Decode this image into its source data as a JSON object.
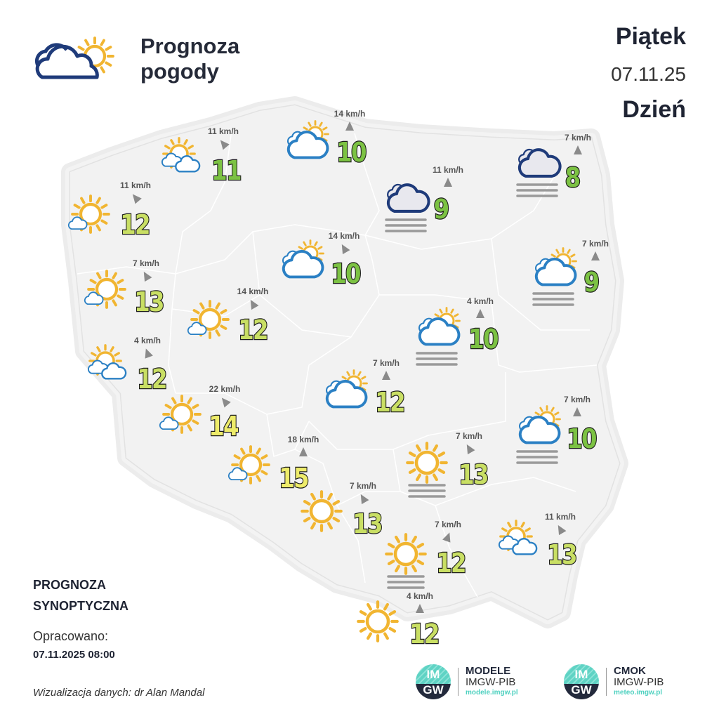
{
  "header": {
    "title_line1": "Prognoza",
    "title_line2": "pogody",
    "day_name": "Piątek",
    "date": "07.11.25",
    "period": "Dzień"
  },
  "legend_colors": {
    "cool": "#7cc243",
    "mild": "#c9df64",
    "warm": "#eeec6a"
  },
  "stations": [
    {
      "wind": "11 km/h",
      "temp": "11",
      "icon": "sun-clouds"
    },
    {
      "wind": "14 km/h",
      "temp": "10",
      "icon": "cloud-sun"
    },
    {
      "wind": "7 km/h",
      "temp": "8",
      "icon": "dark-cloud-fog"
    },
    {
      "wind": "11 km/h",
      "temp": "12",
      "icon": "sun-small-cloud"
    },
    {
      "wind": "11 km/h",
      "temp": "9",
      "icon": "dark-cloud-fog"
    },
    {
      "wind": "14 km/h",
      "temp": "10",
      "icon": "cloud-sun"
    },
    {
      "wind": "7 km/h",
      "temp": "9",
      "icon": "cloud-sun-fog"
    },
    {
      "wind": "7 km/h",
      "temp": "13",
      "icon": "sun-small-cloud"
    },
    {
      "wind": "14 km/h",
      "temp": "12",
      "icon": "sun-small-cloud"
    },
    {
      "wind": "4 km/h",
      "temp": "10",
      "icon": "cloud-sun-fog"
    },
    {
      "wind": "4 km/h",
      "temp": "12",
      "icon": "sun-clouds"
    },
    {
      "wind": "7 km/h",
      "temp": "12",
      "icon": "cloud-sun"
    },
    {
      "wind": "22 km/h",
      "temp": "14",
      "icon": "sun-small-cloud"
    },
    {
      "wind": "7 km/h",
      "temp": "10",
      "icon": "cloud-sun-fog"
    },
    {
      "wind": "18 km/h",
      "temp": "15",
      "icon": "sun-small-cloud"
    },
    {
      "wind": "7 km/h",
      "temp": "13",
      "icon": "sun-fog"
    },
    {
      "wind": "7 km/h",
      "temp": "13",
      "icon": "sun"
    },
    {
      "wind": "7 km/h",
      "temp": "12",
      "icon": "sun-fog"
    },
    {
      "wind": "11 km/h",
      "temp": "13",
      "icon": "sun-clouds"
    },
    {
      "wind": "4 km/h",
      "temp": "12",
      "icon": "sun"
    }
  ],
  "footer": {
    "label_line1": "PROGNOZA",
    "label_line2": "SYNOPTYCZNA",
    "prepared_label": "Opracowano:",
    "prepared_date": "07.11.2025 08:00",
    "credit": "Wizualizacja danych: dr Alan Mandal"
  },
  "logos": [
    {
      "mark": "IMGW",
      "name": "MODELE",
      "org": "IMGW-PIB",
      "url": "modele.imgw.pl"
    },
    {
      "mark": "IMGW",
      "name": "CMOK",
      "org": "IMGW-PIB",
      "url": "meteo.imgw.pl"
    }
  ]
}
